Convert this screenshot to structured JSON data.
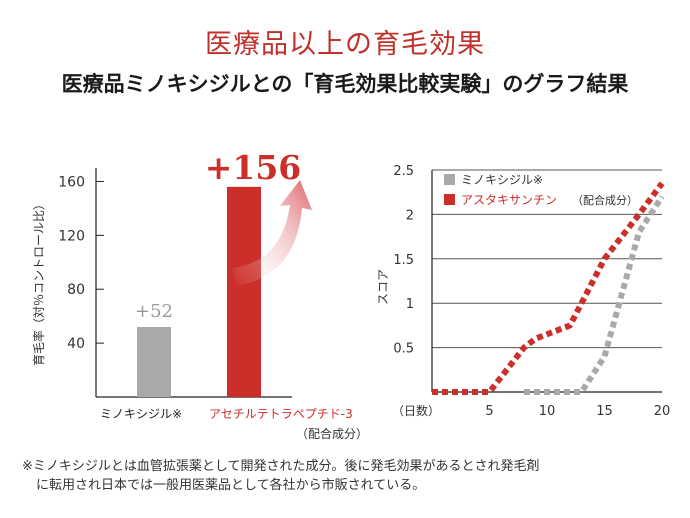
{
  "header": {
    "title": "医療品以上の育毛効果",
    "subtitle": "医療品ミノキシジルとの「育毛効果比較実験」のグラフ結果"
  },
  "colors": {
    "red": "#cc2f2a",
    "gray": "#a9a9a9",
    "axis": "#222222",
    "title_red": "#c0312c"
  },
  "chart_data": [
    {
      "type": "bar",
      "ylabel": "育毛率（対％コントロール比）",
      "ylim": [
        0,
        170
      ],
      "yticks": [
        40,
        80,
        120,
        160
      ],
      "grid": false,
      "categories": [
        "ミノキシジル※",
        "アセチルテトラペプチド-3"
      ],
      "category_note": "（配合成分）",
      "values": [
        52,
        156
      ],
      "value_labels": [
        "+52",
        "+156"
      ],
      "bar_colors": [
        "#a9a9a9",
        "#cc2f2a"
      ],
      "annotation": "upward curved arrow beside the +156 bar"
    },
    {
      "type": "line",
      "xlabel": "（日数）",
      "ylabel": "スコア",
      "xlim": [
        0,
        20
      ],
      "ylim": [
        0,
        2.5
      ],
      "xticks": [
        5,
        10,
        15,
        20
      ],
      "yticks": [
        0.5,
        1,
        1.5,
        2,
        2.5
      ],
      "ytick_labels": [
        "0.5",
        "1",
        "1.5",
        "2",
        "2.5"
      ],
      "grid": "horizontal",
      "legend": "top-left",
      "line_style": "dotted-thick",
      "series": [
        {
          "name": "ミノキシジル※",
          "color": "#a9a9a9",
          "x": [
            8,
            13,
            15,
            18,
            20
          ],
          "y": [
            0,
            0,
            0.4,
            1.8,
            2.2
          ]
        },
        {
          "name": "アスタキサンチン",
          "name_note": "（配合成分）",
          "color": "#cc2f2a",
          "x": [
            0,
            5,
            8,
            9,
            12,
            15,
            18,
            20
          ],
          "y": [
            0,
            0,
            0.5,
            0.6,
            0.75,
            1.5,
            2,
            2.35
          ]
        }
      ]
    }
  ],
  "footnote": {
    "line1": "※ミノキシジルとは血管拡張薬として開発された成分。後に発毛効果があるとされ発毛剤",
    "line2": "に転用され日本では一般用医薬品として各社から市販されている。"
  }
}
